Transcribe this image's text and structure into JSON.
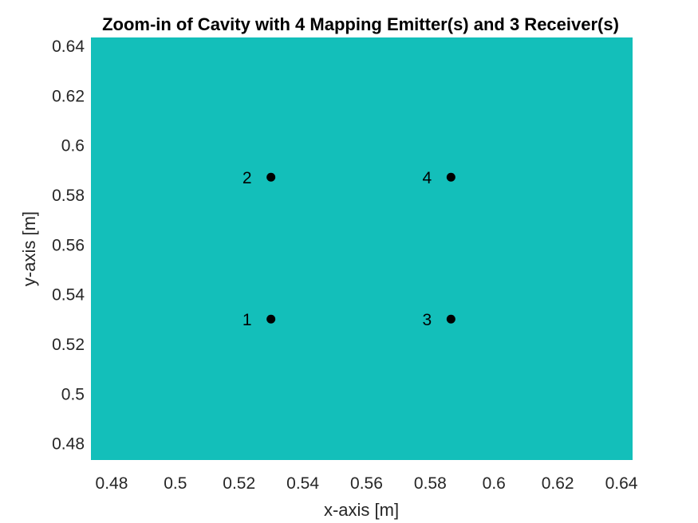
{
  "chart_data": {
    "type": "scatter",
    "title": "Zoom-in of Cavity with 4 Mapping Emitter(s) and 3 Receiver(s)",
    "xlabel": "x-axis [m]",
    "ylabel": "y-axis [m]",
    "xlim": [
      0.4735,
      0.6435
    ],
    "ylim": [
      0.4735,
      0.6435
    ],
    "xticks": [
      0.48,
      0.5,
      0.52,
      0.54,
      0.56,
      0.58,
      0.6,
      0.62,
      0.64
    ],
    "yticks": [
      0.48,
      0.5,
      0.52,
      0.54,
      0.56,
      0.58,
      0.6,
      0.62,
      0.64
    ],
    "xtick_labels": [
      "0.48",
      "0.5",
      "0.52",
      "0.54",
      "0.56",
      "0.58",
      "0.6",
      "0.62",
      "0.64"
    ],
    "ytick_labels": [
      "0.48",
      "0.5",
      "0.52",
      "0.54",
      "0.56",
      "0.58",
      "0.6",
      "0.62",
      "0.64"
    ],
    "background_color": "#13bfba",
    "marker_color": "#000000",
    "grid": false,
    "points": [
      {
        "label": "1",
        "x": 0.53,
        "y": 0.5302
      },
      {
        "label": "2",
        "x": 0.53,
        "y": 0.5873
      },
      {
        "label": "3",
        "x": 0.5865,
        "y": 0.5302
      },
      {
        "label": "4",
        "x": 0.5865,
        "y": 0.5873
      }
    ]
  }
}
